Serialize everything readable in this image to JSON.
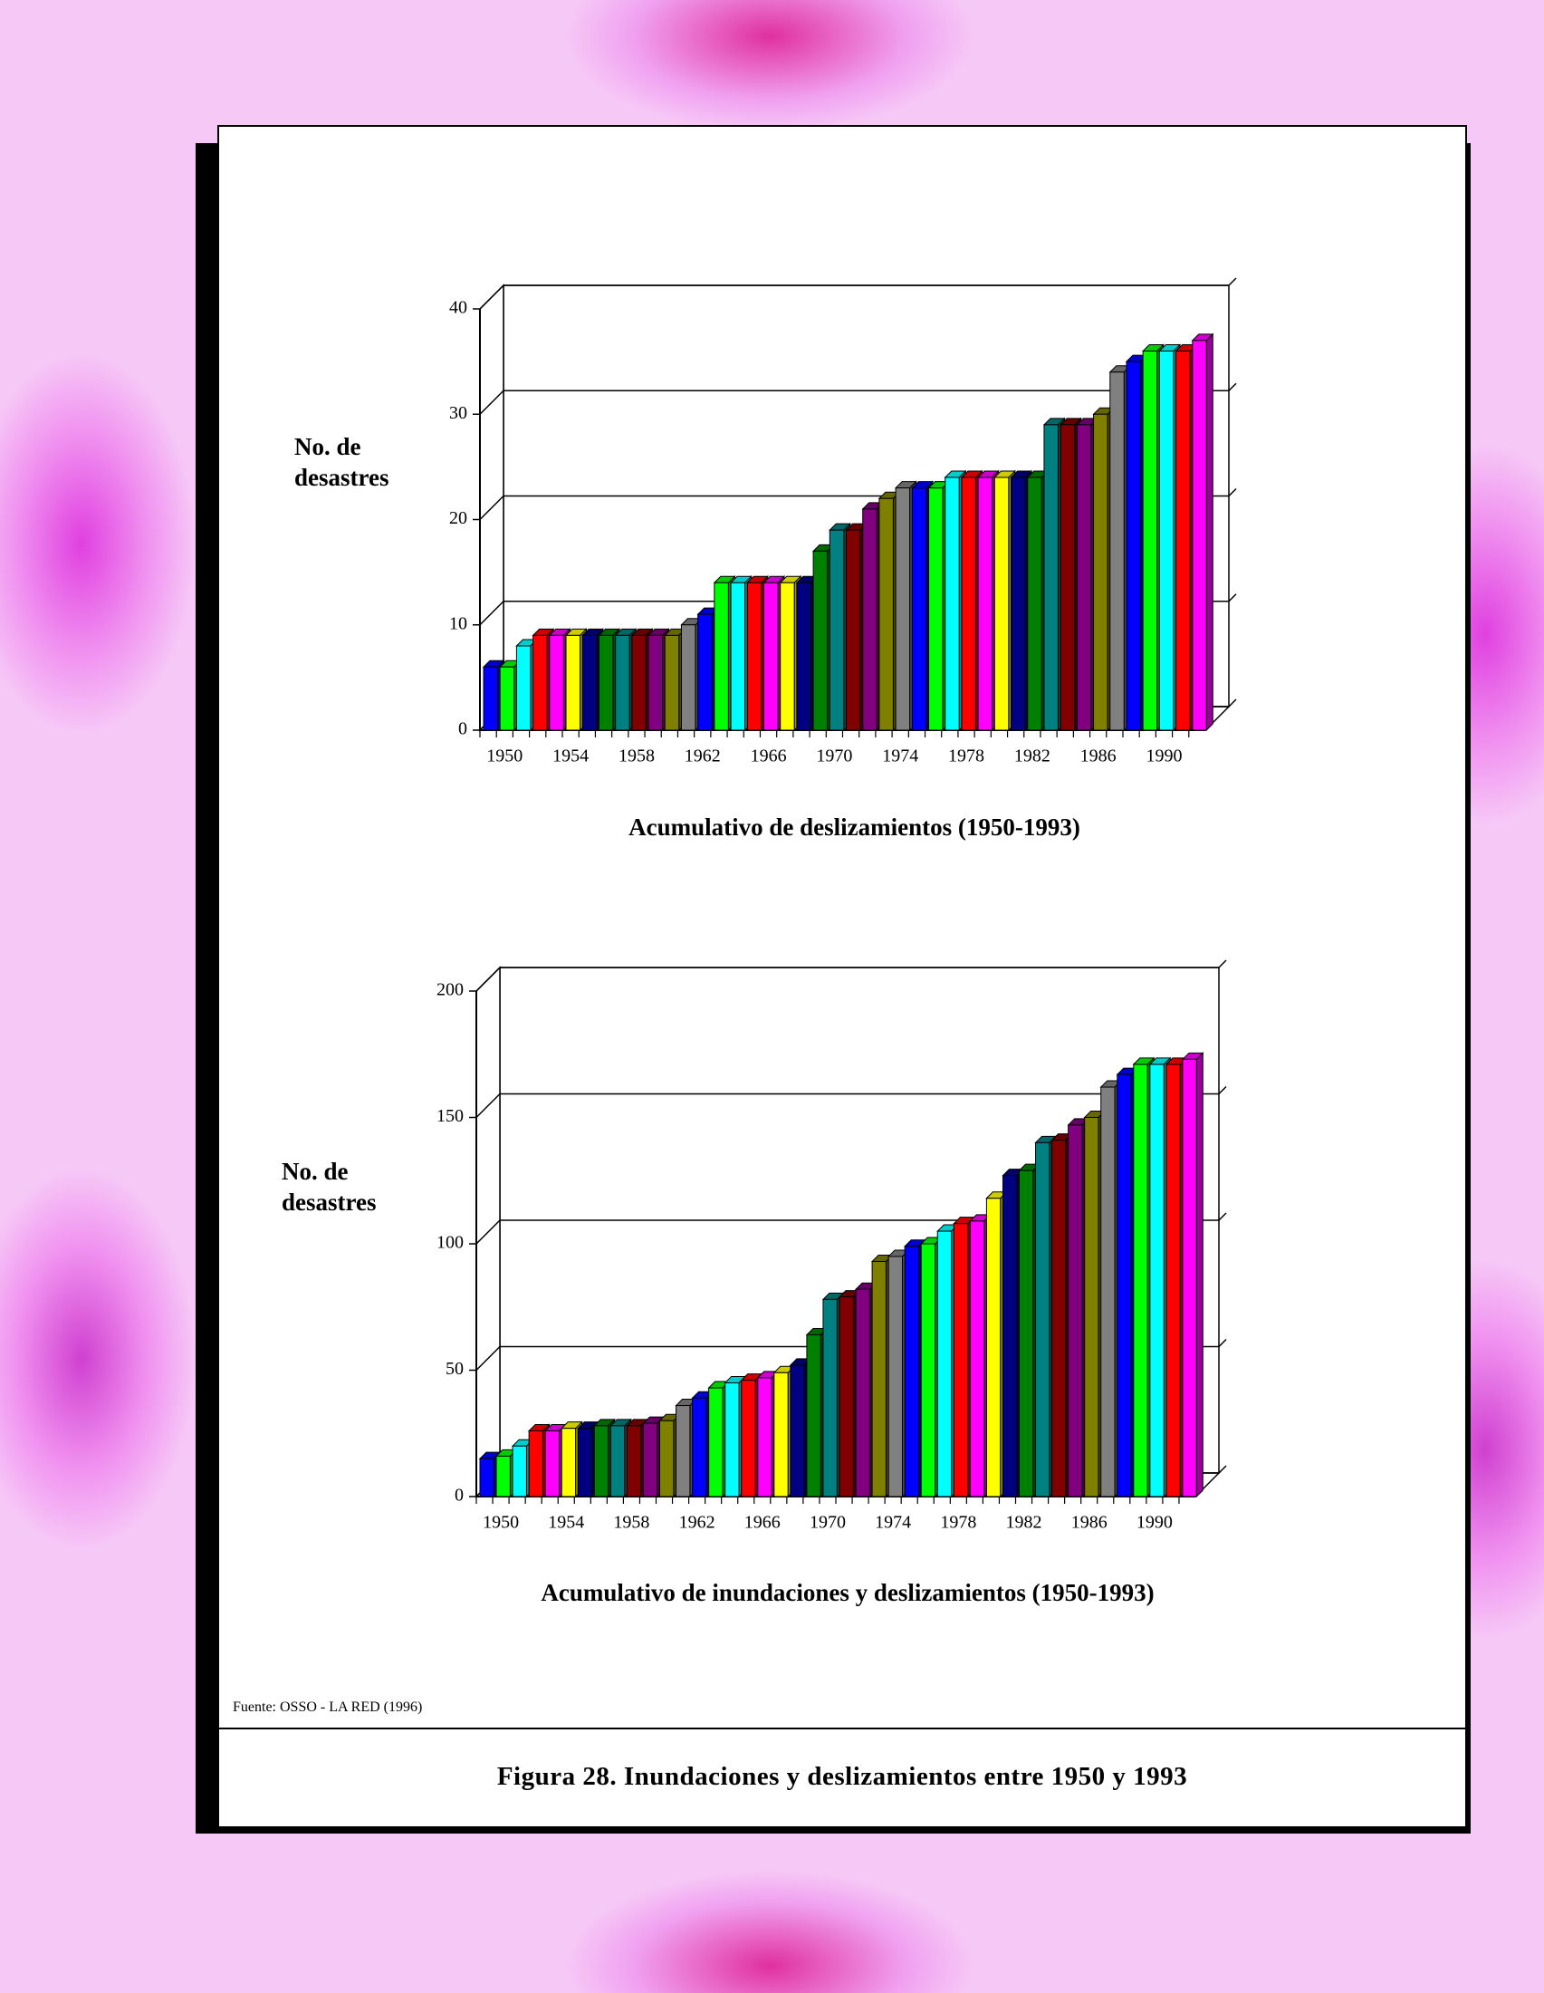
{
  "chart_data": [
    {
      "type": "bar",
      "title": "Acumulativo de deslizamientos (1950-1993)",
      "y_label": "No. de desastres",
      "categories": [
        "1950",
        null,
        null,
        null,
        "1954",
        null,
        null,
        null,
        "1958",
        null,
        null,
        null,
        "1962",
        null,
        null,
        null,
        "1966",
        null,
        null,
        null,
        "1970",
        null,
        null,
        null,
        "1974",
        null,
        null,
        null,
        "1978",
        null,
        null,
        null,
        "1982",
        null,
        null,
        null,
        "1986",
        null,
        null,
        null,
        "1990",
        null,
        null,
        null
      ],
      "values": [
        6,
        6,
        8,
        9,
        9,
        9,
        9,
        9,
        9,
        9,
        9,
        9,
        10,
        11,
        14,
        14,
        14,
        14,
        14,
        14,
        17,
        19,
        19,
        21,
        22,
        23,
        23,
        23,
        24,
        24,
        24,
        24,
        24,
        24,
        29,
        29,
        29,
        30,
        34,
        35,
        36,
        36,
        36,
        37
      ],
      "ylim": [
        0,
        40
      ],
      "yticks": [
        0,
        10,
        20,
        30,
        40
      ],
      "grid": true,
      "colors": [
        "#0000ff",
        "#00ff00",
        "#00ffff",
        "#ff0000",
        "#ff00ff",
        "#ffff00",
        "#000080",
        "#008000",
        "#008080",
        "#800000",
        "#800080",
        "#808000",
        "#808080"
      ]
    },
    {
      "type": "bar",
      "title": "Acumulativo de inundaciones y deslizamientos (1950-1993)",
      "y_label": "No. de desastres",
      "categories": [
        "1950",
        null,
        null,
        null,
        "1954",
        null,
        null,
        null,
        "1958",
        null,
        null,
        null,
        "1962",
        null,
        null,
        null,
        "1966",
        null,
        null,
        null,
        "1970",
        null,
        null,
        null,
        "1974",
        null,
        null,
        null,
        "1978",
        null,
        null,
        null,
        "1982",
        null,
        null,
        null,
        "1986",
        null,
        null,
        null,
        "1990",
        null,
        null,
        null
      ],
      "values": [
        15,
        16,
        20,
        26,
        26,
        27,
        27,
        28,
        28,
        28,
        29,
        30,
        36,
        39,
        43,
        45,
        46,
        47,
        49,
        52,
        64,
        78,
        79,
        82,
        93,
        95,
        99,
        100,
        105,
        108,
        109,
        118,
        127,
        129,
        140,
        141,
        147,
        150,
        162,
        167,
        171,
        171,
        171,
        173
      ],
      "ylim": [
        0,
        200
      ],
      "yticks": [
        0,
        50,
        100,
        150,
        200
      ],
      "grid": true,
      "colors": [
        "#0000ff",
        "#00ff00",
        "#00ffff",
        "#ff0000",
        "#ff00ff",
        "#ffff00",
        "#000080",
        "#008000",
        "#008080",
        "#800000",
        "#800080",
        "#808000",
        "#808080"
      ]
    }
  ],
  "source": "Fuente: OSSO - LA RED (1996)",
  "caption": "Figura 28. Inundaciones y deslizamientos entre 1950 y 1993"
}
